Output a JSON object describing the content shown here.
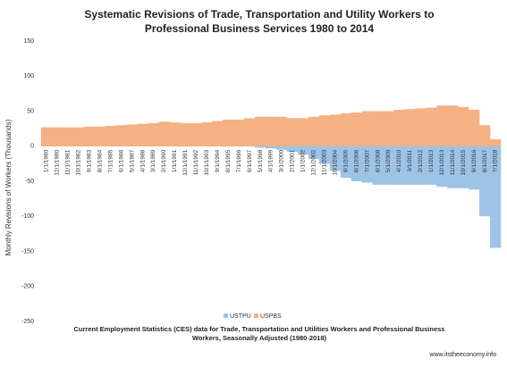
{
  "chart_data": {
    "type": "bar",
    "title": "Systematic Revisions of Trade, Transportation and Utility Workers to Professional Business Services 1980 to 2014",
    "subtitle": "Current Employment Statistics (CES) data for Trade, Transportation and Utilities Workers and Professional Business Workers, Seasonally Adjusted (1980-2018)",
    "y_label": "Monthly Revisions of Workers (Thousands)",
    "source": "www.itstheeconomy.info",
    "categories": [
      "1/1/1980",
      "12/1/1980",
      "11/1/1981",
      "10/1/1982",
      "9/1/1983",
      "8/1/1984",
      "7/1/1985",
      "6/1/1986",
      "5/1/1987",
      "4/1/1988",
      "3/1/1989",
      "2/1/1990",
      "1/1/1991",
      "12/1/1991",
      "11/1/1992",
      "10/1/1993",
      "9/1/1994",
      "8/1/1995",
      "7/1/1996",
      "6/1/1997",
      "5/1/1998",
      "4/1/1999",
      "3/1/2000",
      "2/1/2001",
      "1/1/2002",
      "12/1/2002",
      "11/1/2003",
      "10/1/2004",
      "9/1/2005",
      "8/1/2006",
      "7/1/2007",
      "6/1/2008",
      "5/1/2009",
      "4/1/2010",
      "3/1/2011",
      "2/1/2012",
      "1/1/2013",
      "12/1/2013",
      "11/1/2014",
      "10/1/2015",
      "9/1/2016",
      "8/1/2017",
      "7/1/2018"
    ],
    "series": [
      {
        "name": "USTPU",
        "color": "#9dc3e6",
        "values": [
          0,
          0,
          0,
          0,
          0,
          0,
          0,
          0,
          0,
          0,
          0,
          0,
          0,
          0,
          0,
          0,
          0,
          0,
          0,
          0,
          -2,
          -3,
          -5,
          -8,
          -12,
          -18,
          -25,
          -35,
          -45,
          -50,
          -52,
          -55,
          -55,
          -55,
          -55,
          -55,
          -55,
          -58,
          -60,
          -60,
          -62,
          -100,
          -145
        ]
      },
      {
        "name": "USPBS",
        "color": "#f4b183",
        "values": [
          27,
          27,
          27,
          27,
          28,
          28,
          29,
          30,
          31,
          32,
          33,
          35,
          34,
          33,
          33,
          34,
          36,
          38,
          38,
          40,
          42,
          42,
          42,
          40,
          40,
          42,
          44,
          45,
          47,
          48,
          50,
          50,
          50,
          52,
          53,
          54,
          55,
          58,
          58,
          56,
          52,
          30,
          10
        ]
      }
    ],
    "ylim": [
      -250,
      150
    ],
    "yticks": [
      -250,
      -200,
      -150,
      -100,
      -50,
      0,
      50,
      100,
      150
    ],
    "grid": false
  }
}
